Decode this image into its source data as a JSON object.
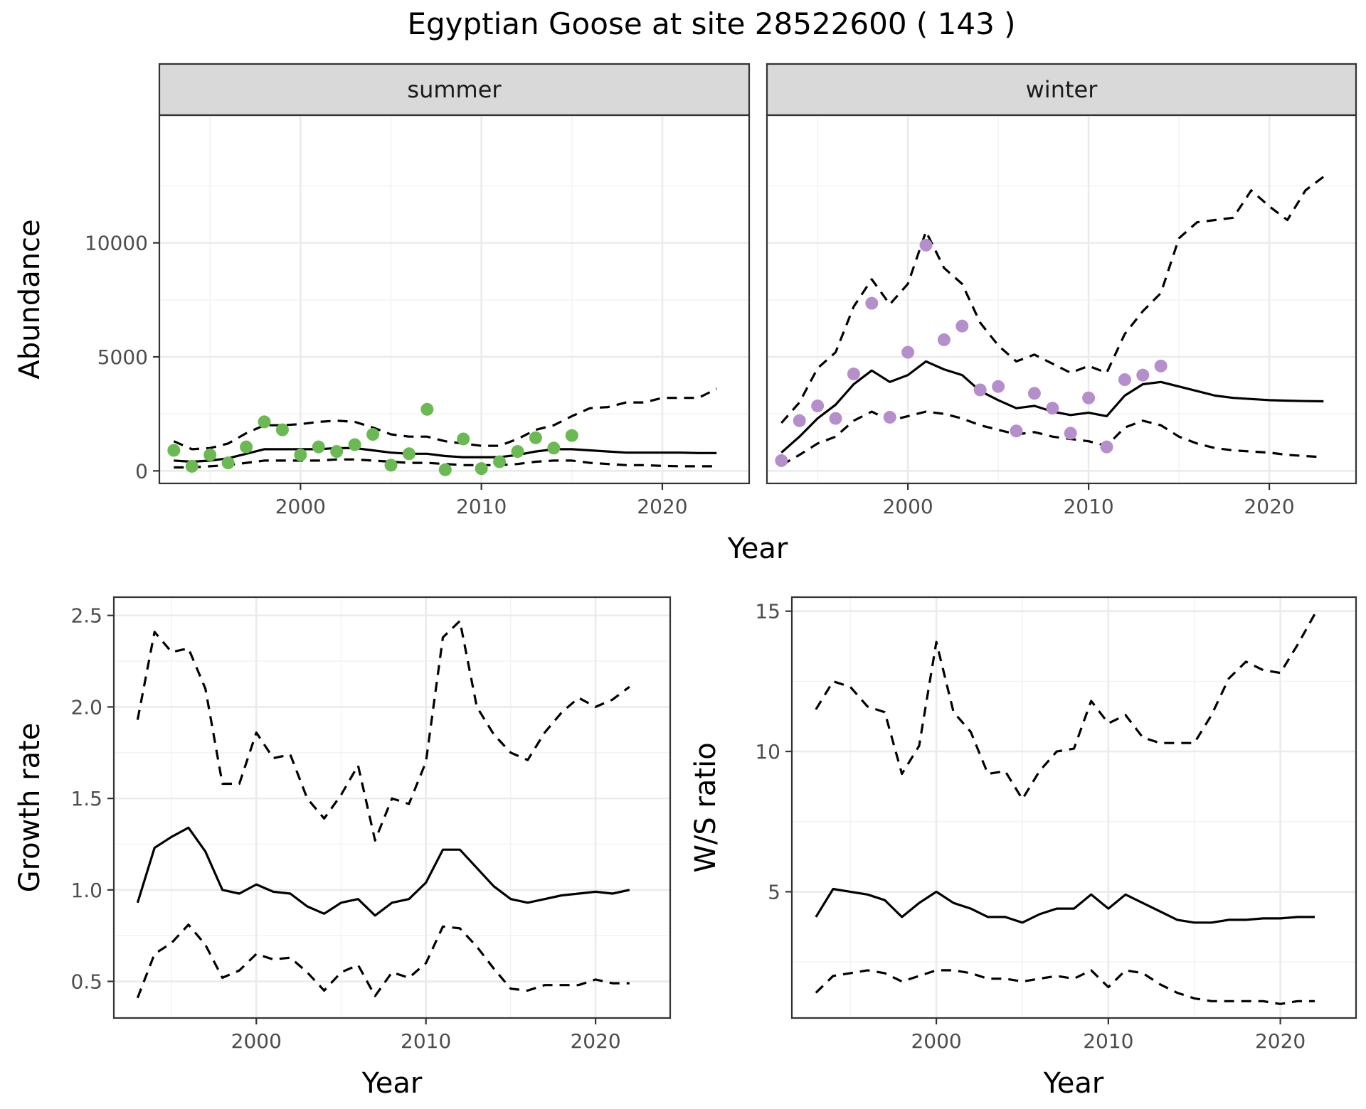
{
  "figure_title": "Egyptian Goose at site 28522600 ( 143 )",
  "colors": {
    "summer_points": "#6ab952",
    "winter_points": "#b58fcb",
    "lines": "#000000",
    "strip": "#d9d9d9"
  },
  "chart_data": [
    {
      "type": "line",
      "panel": "summer",
      "strip_label": "summer",
      "xlabel": "Year",
      "ylabel": "Abundance",
      "xlim": [
        1992.2,
        2024.8
      ],
      "ylim": [
        -550,
        15600
      ],
      "xticks": [
        2000,
        2010,
        2020
      ],
      "yticks": [
        0,
        5000,
        10000
      ],
      "ytick_labels": [
        "0",
        "5000",
        "10000"
      ],
      "grid": true,
      "points": {
        "x": [
          1993,
          1994,
          1995,
          1996,
          1997,
          1998,
          1999,
          2000,
          2001,
          2002,
          2003,
          2004,
          2005,
          2006,
          2007,
          2008,
          2009,
          2010,
          2011,
          2012,
          2013,
          2014,
          2015
        ],
        "y": [
          900,
          200,
          700,
          350,
          1050,
          2150,
          1800,
          700,
          1050,
          850,
          1150,
          1600,
          250,
          750,
          2700,
          50,
          1400,
          100,
          400,
          850,
          1450,
          1000,
          1550
        ]
      },
      "series": [
        {
          "role": "estimate",
          "x": [
            1993,
            1994,
            1995,
            1996,
            1997,
            1998,
            1999,
            2000,
            2001,
            2002,
            2003,
            2004,
            2005,
            2006,
            2007,
            2008,
            2009,
            2010,
            2011,
            2012,
            2013,
            2014,
            2015,
            2016,
            2017,
            2018,
            2019,
            2020,
            2021,
            2022,
            2023
          ],
          "y": [
            450,
            400,
            450,
            550,
            750,
            950,
            950,
            950,
            950,
            1000,
            1000,
            900,
            800,
            750,
            750,
            650,
            600,
            600,
            600,
            700,
            850,
            950,
            950,
            900,
            850,
            800,
            800,
            800,
            800,
            780,
            780
          ]
        },
        {
          "role": "upper",
          "x": [
            1993,
            1994,
            1995,
            1996,
            1997,
            1998,
            1999,
            2000,
            2001,
            2002,
            2003,
            2004,
            2005,
            2006,
            2007,
            2008,
            2009,
            2010,
            2011,
            2012,
            2013,
            2014,
            2015,
            2016,
            2017,
            2018,
            2019,
            2020,
            2021,
            2022,
            2023
          ],
          "y": [
            1300,
            950,
            1000,
            1200,
            1650,
            2000,
            2000,
            2050,
            2150,
            2200,
            2150,
            1900,
            1600,
            1500,
            1500,
            1300,
            1200,
            1100,
            1100,
            1400,
            1800,
            2000,
            2400,
            2750,
            2800,
            3000,
            3000,
            3200,
            3200,
            3200,
            3600
          ]
        },
        {
          "role": "lower",
          "x": [
            1993,
            1994,
            1995,
            1996,
            1997,
            1998,
            1999,
            2000,
            2001,
            2002,
            2003,
            2004,
            2005,
            2006,
            2007,
            2008,
            2009,
            2010,
            2011,
            2012,
            2013,
            2014,
            2015,
            2016,
            2017,
            2018,
            2019,
            2020,
            2021,
            2022,
            2023
          ],
          "y": [
            150,
            150,
            200,
            250,
            350,
            450,
            450,
            450,
            450,
            500,
            500,
            450,
            400,
            350,
            350,
            300,
            250,
            250,
            250,
            300,
            400,
            450,
            450,
            350,
            300,
            250,
            250,
            220,
            200,
            200,
            200
          ]
        }
      ]
    },
    {
      "type": "line",
      "panel": "winter",
      "strip_label": "winter",
      "xlabel": "Year",
      "ylabel": "Abundance",
      "xlim": [
        1992.2,
        2024.8
      ],
      "ylim": [
        -550,
        15600
      ],
      "xticks": [
        2000,
        2010,
        2020
      ],
      "yticks": [
        0,
        5000,
        10000
      ],
      "grid": true,
      "points": {
        "x": [
          1993,
          1994,
          1995,
          1996,
          1997,
          1998,
          1999,
          2000,
          2001,
          2002,
          2003,
          2004,
          2005,
          2006,
          2007,
          2008,
          2009,
          2010,
          2011,
          2012,
          2013,
          2014
        ],
        "y": [
          450,
          2200,
          2850,
          2300,
          4250,
          7350,
          2350,
          5200,
          9900,
          5750,
          6350,
          3550,
          3700,
          1750,
          3400,
          2750,
          1650,
          3200,
          1050,
          4000,
          4200,
          4600
        ]
      },
      "series": [
        {
          "role": "estimate",
          "x": [
            1993,
            1994,
            1995,
            1996,
            1997,
            1998,
            1999,
            2000,
            2001,
            2002,
            2003,
            2004,
            2005,
            2006,
            2007,
            2008,
            2009,
            2010,
            2011,
            2012,
            2013,
            2014,
            2015,
            2016,
            2017,
            2018,
            2019,
            2020,
            2021,
            2022,
            2023
          ],
          "y": [
            800,
            1500,
            2300,
            2900,
            3800,
            4400,
            3900,
            4200,
            4800,
            4450,
            4200,
            3500,
            3100,
            2750,
            2850,
            2600,
            2450,
            2550,
            2400,
            3300,
            3800,
            3900,
            3700,
            3500,
            3300,
            3200,
            3150,
            3100,
            3080,
            3060,
            3050
          ]
        },
        {
          "role": "upper",
          "x": [
            1993,
            1994,
            1995,
            1996,
            1997,
            1998,
            1999,
            2000,
            2001,
            2002,
            2003,
            2004,
            2005,
            2006,
            2007,
            2008,
            2009,
            2010,
            2011,
            2012,
            2013,
            2014,
            2015,
            2016,
            2017,
            2018,
            2019,
            2020,
            2021,
            2022,
            2023
          ],
          "y": [
            2100,
            3000,
            4500,
            5200,
            7200,
            8400,
            7300,
            8200,
            10500,
            8900,
            8200,
            6500,
            5500,
            4800,
            5100,
            4700,
            4300,
            4600,
            4300,
            6000,
            7000,
            7800,
            10200,
            10900,
            11000,
            11100,
            12300,
            11600,
            11000,
            12300,
            12900
          ]
        },
        {
          "role": "lower",
          "x": [
            1993,
            1994,
            1995,
            1996,
            1997,
            1998,
            1999,
            2000,
            2001,
            2002,
            2003,
            2004,
            2005,
            2006,
            2007,
            2008,
            2009,
            2010,
            2011,
            2012,
            2013,
            2014,
            2015,
            2016,
            2017,
            2018,
            2019,
            2020,
            2021,
            2022,
            2023
          ],
          "y": [
            250,
            700,
            1200,
            1500,
            2200,
            2600,
            2200,
            2400,
            2600,
            2500,
            2300,
            2000,
            1800,
            1600,
            1700,
            1500,
            1400,
            1300,
            1100,
            1900,
            2200,
            2000,
            1500,
            1200,
            1000,
            900,
            850,
            800,
            700,
            650,
            600
          ]
        }
      ]
    },
    {
      "type": "line",
      "panel": "growth",
      "xlabel": "Year",
      "ylabel": "Growth rate",
      "xlim": [
        1991.6,
        2024.4
      ],
      "ylim": [
        0.3,
        2.6
      ],
      "xticks": [
        2000,
        2010,
        2020
      ],
      "yticks": [
        0.5,
        1.0,
        1.5,
        2.0,
        2.5
      ],
      "ytick_labels": [
        "0.5",
        "1.0",
        "1.5",
        "2.0",
        "2.5"
      ],
      "grid": true,
      "series": [
        {
          "role": "estimate",
          "x": [
            1993,
            1994,
            1995,
            1996,
            1997,
            1998,
            1999,
            2000,
            2001,
            2002,
            2003,
            2004,
            2005,
            2006,
            2007,
            2008,
            2009,
            2010,
            2011,
            2012,
            2013,
            2014,
            2015,
            2016,
            2017,
            2018,
            2019,
            2020,
            2021,
            2022
          ],
          "y": [
            0.93,
            1.23,
            1.29,
            1.34,
            1.21,
            1.0,
            0.98,
            1.03,
            0.99,
            0.98,
            0.91,
            0.87,
            0.93,
            0.95,
            0.86,
            0.93,
            0.95,
            1.04,
            1.22,
            1.22,
            1.12,
            1.02,
            0.95,
            0.93,
            0.95,
            0.97,
            0.98,
            0.99,
            0.98,
            1.0
          ]
        },
        {
          "role": "upper",
          "x": [
            1993,
            1994,
            1995,
            1996,
            1997,
            1998,
            1999,
            2000,
            2001,
            2002,
            2003,
            2004,
            2005,
            2006,
            2007,
            2008,
            2009,
            2010,
            2011,
            2012,
            2013,
            2014,
            2015,
            2016,
            2017,
            2018,
            2019,
            2020,
            2021,
            2022
          ],
          "y": [
            1.93,
            2.41,
            2.3,
            2.32,
            2.1,
            1.58,
            1.58,
            1.86,
            1.72,
            1.74,
            1.5,
            1.39,
            1.52,
            1.68,
            1.27,
            1.5,
            1.47,
            1.7,
            2.38,
            2.47,
            2.0,
            1.85,
            1.75,
            1.71,
            1.86,
            1.97,
            2.05,
            2.0,
            2.04,
            2.11
          ]
        },
        {
          "role": "lower",
          "x": [
            1993,
            1994,
            1995,
            1996,
            1997,
            1998,
            1999,
            2000,
            2001,
            2002,
            2003,
            2004,
            2005,
            2006,
            2007,
            2008,
            2009,
            2010,
            2011,
            2012,
            2013,
            2014,
            2015,
            2016,
            2017,
            2018,
            2019,
            2020,
            2021,
            2022
          ],
          "y": [
            0.41,
            0.65,
            0.71,
            0.81,
            0.7,
            0.52,
            0.56,
            0.65,
            0.62,
            0.63,
            0.55,
            0.45,
            0.55,
            0.59,
            0.42,
            0.55,
            0.52,
            0.6,
            0.8,
            0.79,
            0.69,
            0.57,
            0.46,
            0.45,
            0.48,
            0.48,
            0.48,
            0.51,
            0.49,
            0.49
          ]
        }
      ]
    },
    {
      "type": "line",
      "panel": "ws_ratio",
      "xlabel": "Year",
      "ylabel": "W/S ratio",
      "xlim": [
        1991.6,
        2024.4
      ],
      "ylim": [
        0.5,
        15.5
      ],
      "xticks": [
        2000,
        2010,
        2020
      ],
      "yticks": [
        5,
        10,
        15
      ],
      "ytick_labels": [
        "5",
        "10",
        "15"
      ],
      "grid": true,
      "series": [
        {
          "role": "estimate",
          "x": [
            1993,
            1994,
            1995,
            1996,
            1997,
            1998,
            1999,
            2000,
            2001,
            2002,
            2003,
            2004,
            2005,
            2006,
            2007,
            2008,
            2009,
            2010,
            2011,
            2012,
            2013,
            2014,
            2015,
            2016,
            2017,
            2018,
            2019,
            2020,
            2021,
            2022
          ],
          "y": [
            4.1,
            5.1,
            5.0,
            4.9,
            4.7,
            4.1,
            4.6,
            5.0,
            4.6,
            4.4,
            4.1,
            4.1,
            3.9,
            4.2,
            4.4,
            4.4,
            4.9,
            4.4,
            4.9,
            4.6,
            4.3,
            4.0,
            3.9,
            3.9,
            4.0,
            4.0,
            4.05,
            4.05,
            4.1,
            4.1
          ]
        },
        {
          "role": "upper",
          "x": [
            1993,
            1994,
            1995,
            1996,
            1997,
            1998,
            1999,
            2000,
            2001,
            2002,
            2003,
            2004,
            2005,
            2006,
            2007,
            2008,
            2009,
            2010,
            2011,
            2012,
            2013,
            2014,
            2015,
            2016,
            2017,
            2018,
            2019,
            2020,
            2021,
            2022
          ],
          "y": [
            11.5,
            12.5,
            12.3,
            11.6,
            11.4,
            9.2,
            10.2,
            13.9,
            11.4,
            10.7,
            9.2,
            9.3,
            8.3,
            9.3,
            10.0,
            10.1,
            11.8,
            11.0,
            11.3,
            10.5,
            10.3,
            10.3,
            10.3,
            11.3,
            12.6,
            13.2,
            12.9,
            12.8,
            13.8,
            14.9
          ]
        },
        {
          "role": "lower",
          "x": [
            1993,
            1994,
            1995,
            1996,
            1997,
            1998,
            1999,
            2000,
            2001,
            2002,
            2003,
            2004,
            2005,
            2006,
            2007,
            2008,
            2009,
            2010,
            2011,
            2012,
            2013,
            2014,
            2015,
            2016,
            2017,
            2018,
            2019,
            2020,
            2021,
            2022
          ],
          "y": [
            1.4,
            2.0,
            2.1,
            2.2,
            2.1,
            1.8,
            2.0,
            2.2,
            2.2,
            2.1,
            1.9,
            1.9,
            1.8,
            1.9,
            2.0,
            1.9,
            2.2,
            1.6,
            2.2,
            2.1,
            1.7,
            1.4,
            1.2,
            1.1,
            1.1,
            1.1,
            1.1,
            1.0,
            1.1,
            1.1
          ]
        }
      ]
    }
  ]
}
